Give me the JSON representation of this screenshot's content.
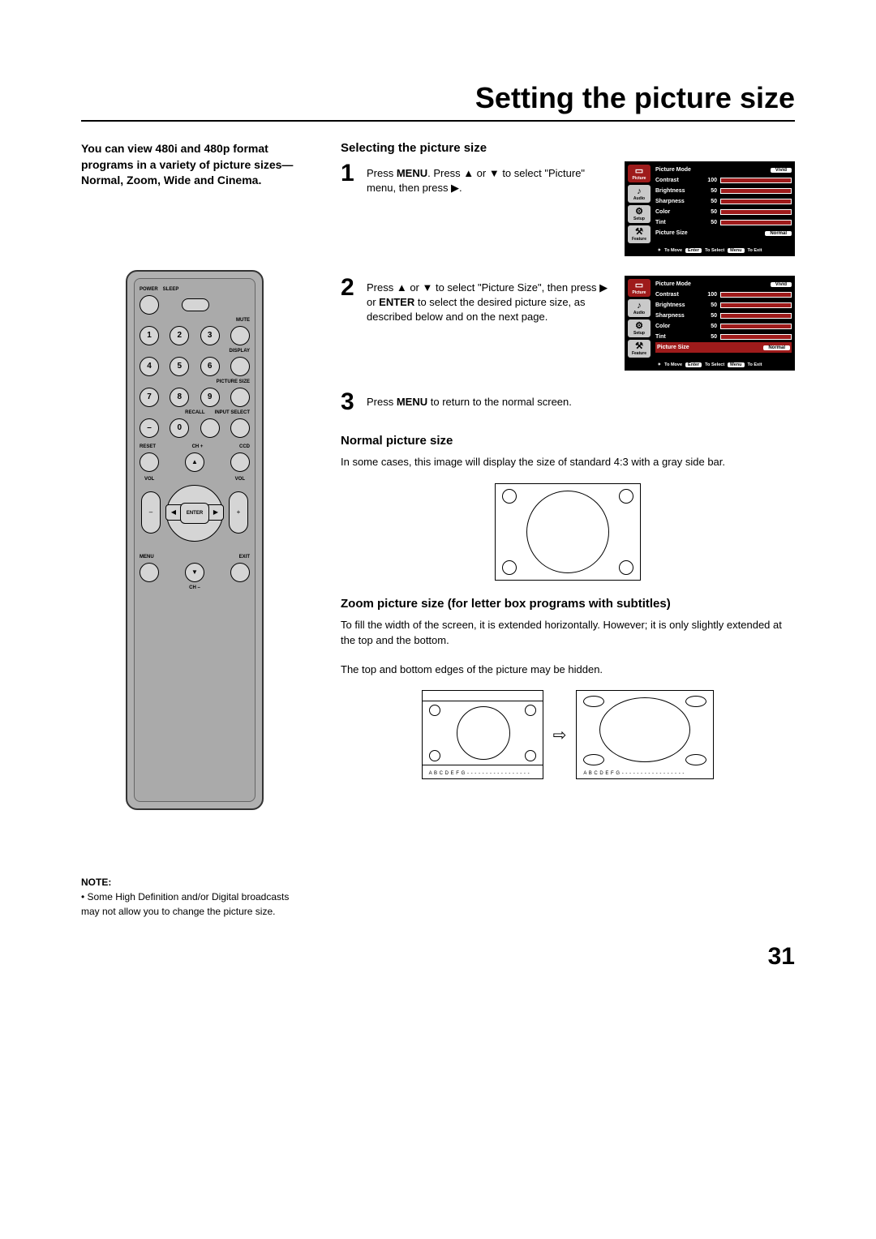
{
  "page": {
    "title": "Setting the picture size",
    "number": "31"
  },
  "intro": "You can view 480i and 480p format programs in a variety of picture sizes— Normal, Zoom, Wide and Cinema.",
  "remote": {
    "labels": {
      "power": "POWER",
      "sleep": "SLEEP",
      "mute": "MUTE",
      "display": "DISPLAY",
      "picture_size": "PICTURE SIZE",
      "recall": "RECALL",
      "input_select": "INPUT SELECT",
      "reset": "RESET",
      "ch_plus": "CH +",
      "ccd": "CCD",
      "vol_minus": "VOL\n–",
      "vol_plus": "VOL\n+",
      "enter": "ENTER",
      "menu": "MENU",
      "exit": "EXIT",
      "ch_minus": "CH –"
    },
    "digits": [
      "1",
      "2",
      "3",
      "4",
      "5",
      "6",
      "7",
      "8",
      "9",
      "0"
    ],
    "dash": "–"
  },
  "selecting": {
    "heading": "Selecting the picture size",
    "step1_a": "Press ",
    "step1_menu": "MENU",
    "step1_b": ". Press ▲ or ▼ to select \"Picture\" menu, then press ▶.",
    "step2_a": "Press ▲ or ▼ to select \"Picture Size\", then press ▶ or ",
    "step2_enter": "ENTER",
    "step2_b": " to select the desired picture size, as described below and on the next page.",
    "step3_a": "Press ",
    "step3_menu": "MENU",
    "step3_b": " to return to the normal screen."
  },
  "osd": {
    "side": [
      {
        "icon": "▭",
        "label": "Picture",
        "active": true
      },
      {
        "icon": "♪",
        "label": "Audio",
        "active": false
      },
      {
        "icon": "⚙",
        "label": "Setup",
        "active": false
      },
      {
        "icon": "⚒",
        "label": "Feature",
        "active": false
      }
    ],
    "rows": [
      {
        "label": "Picture Mode",
        "value": "",
        "pill": "Vivid"
      },
      {
        "label": "Contrast",
        "value": "100",
        "bar": true
      },
      {
        "label": "Brightness",
        "value": "50",
        "bar": true
      },
      {
        "label": "Sharpness",
        "value": "50",
        "bar": true
      },
      {
        "label": "Color",
        "value": "50",
        "bar": true
      },
      {
        "label": "Tint",
        "value": "50",
        "bar": true
      },
      {
        "label": "Picture Size",
        "value": "",
        "pill": "Normal"
      }
    ],
    "footer": {
      "move": "To Move",
      "enter": "Enter",
      "select": "To Select",
      "menu": "Menu",
      "exit": "To Exit",
      "nav": "✦"
    }
  },
  "normal": {
    "heading": "Normal picture size",
    "text": "In some cases, this image will display the size of standard 4:3 with a gray side bar."
  },
  "zoom": {
    "heading": "Zoom picture size (for letter box programs with subtitles)",
    "text1": "To fill the width of the screen, it is extended horizontally. However; it is only slightly extended at the top and the bottom.",
    "text2": "The top and bottom edges of the picture may be hidden.",
    "subtitle": "A B C D E F G - - - - - - - - - - - - - - - - -"
  },
  "note": {
    "title": "NOTE:",
    "text": "Some High Definition and/or Digital broadcasts may not allow you to change the picture size."
  }
}
